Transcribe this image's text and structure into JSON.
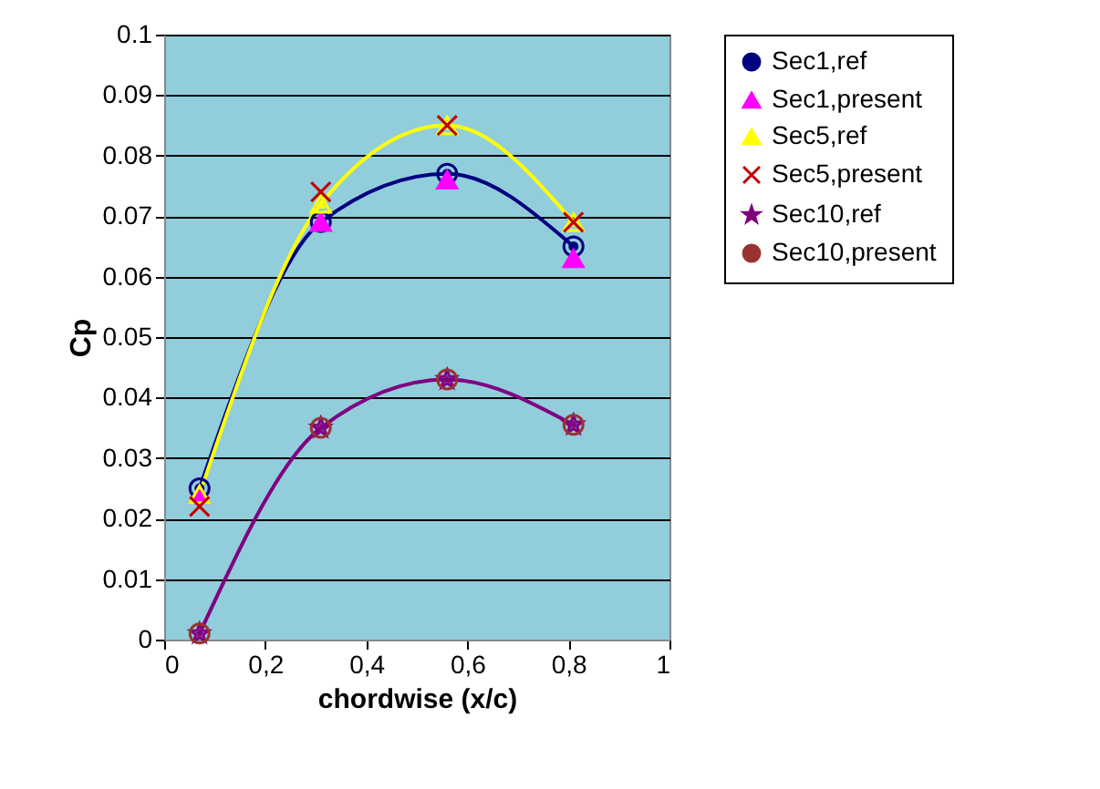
{
  "chart_data": {
    "type": "line",
    "xlabel": "chordwise (x/c)",
    "ylabel": "Cp",
    "x": [
      0.07,
      0.31,
      0.56,
      0.81
    ],
    "series": [
      {
        "name": "Sec1,ref",
        "type": "line",
        "color": "#000080",
        "marker": "circle",
        "values": [
          0.025,
          0.069,
          0.077,
          0.065
        ]
      },
      {
        "name": "Sec1,present",
        "type": "scatter",
        "color": "#ff00ff",
        "marker": "triangle",
        "values": [
          0.024,
          0.069,
          0.076,
          0.063
        ]
      },
      {
        "name": "Sec5,ref",
        "type": "line",
        "color": "#ffff00",
        "marker": "triangle",
        "values": [
          0.024,
          0.072,
          0.085,
          0.069
        ]
      },
      {
        "name": "Sec5,present",
        "type": "scatter",
        "color": "#c00000",
        "marker": "cross",
        "values": [
          0.022,
          0.074,
          0.085,
          0.069
        ]
      },
      {
        "name": "Sec10,ref",
        "type": "line",
        "color": "#800080",
        "marker": "star",
        "values": [
          0.001,
          0.035,
          0.043,
          0.0355
        ]
      },
      {
        "name": "Sec10,present",
        "type": "scatter",
        "color": "#993333",
        "marker": "circle",
        "values": [
          0.001,
          0.035,
          0.043,
          0.0355
        ]
      }
    ],
    "xlim": [
      0,
      1
    ],
    "xticks": [
      0,
      {
        "value": 0.2,
        "label": "0,2"
      },
      {
        "value": 0.4,
        "label": "0,4"
      },
      {
        "value": 0.6,
        "label": "0,6"
      },
      {
        "value": 0.8,
        "label": "0,8"
      },
      1
    ],
    "ylim": [
      0,
      0.1
    ],
    "yticks": [
      0,
      0.01,
      0.02,
      0.03,
      0.04,
      0.05,
      0.06,
      0.07,
      0.08,
      0.09,
      0.1
    ],
    "grid": "y",
    "legend": "right"
  }
}
